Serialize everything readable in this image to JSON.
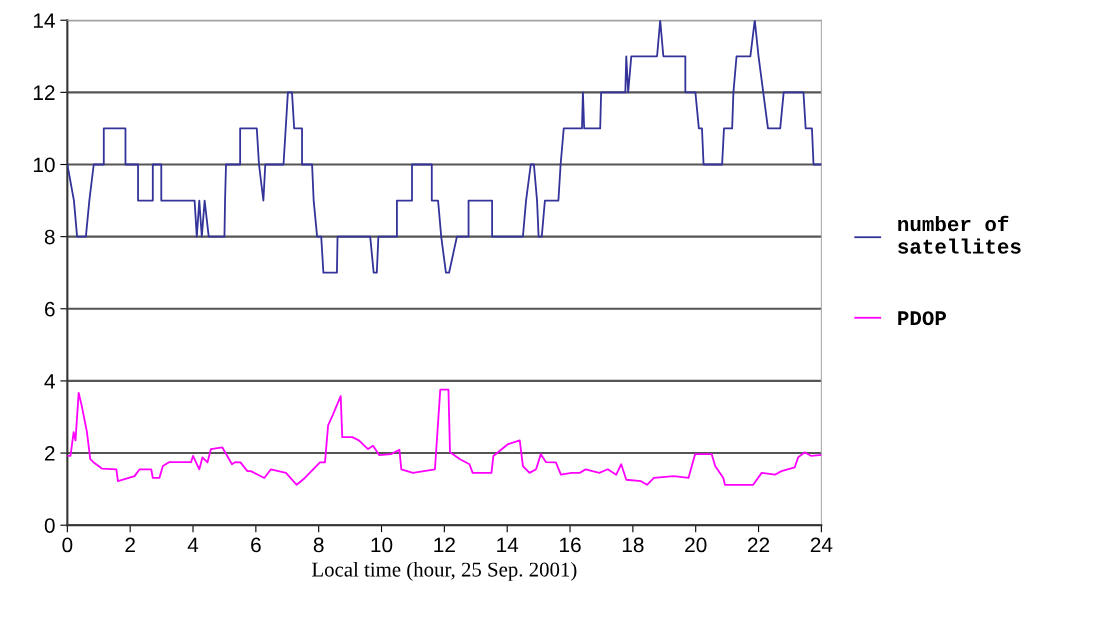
{
  "chart_data": {
    "type": "line",
    "xlabel": "Local time (hour, 25 Sep. 2001)",
    "xlim": [
      0,
      24
    ],
    "xticks": [
      0,
      2,
      4,
      6,
      8,
      10,
      12,
      14,
      16,
      18,
      20,
      22,
      24
    ],
    "ylim": [
      0,
      14
    ],
    "yticks": [
      0,
      2,
      4,
      6,
      8,
      10,
      12,
      14
    ],
    "grid": "y",
    "legend": "right",
    "marker": "none",
    "line_style": "solid",
    "series": [
      {
        "name": "number of\nsatellites",
        "color": "#33339a",
        "x": [
          0,
          0.21,
          0.31,
          0.59,
          0.7,
          0.84,
          1.16,
          1.16,
          1.85,
          1.85,
          2.25,
          2.25,
          2.72,
          2.72,
          2.99,
          2.99,
          4.05,
          4.12,
          4.2,
          4.28,
          4.37,
          4.5,
          5.0,
          5.02,
          5.05,
          5.5,
          5.5,
          6.03,
          6.1,
          6.24,
          6.3,
          6.88,
          6.95,
          7.02,
          7.15,
          7.22,
          7.47,
          7.47,
          7.79,
          7.84,
          7.95,
          8.08,
          8.15,
          8.58,
          8.6,
          9.64,
          9.75,
          9.85,
          9.9,
          10.49,
          10.49,
          10.97,
          10.97,
          11.6,
          11.6,
          11.8,
          11.9,
          12.05,
          12.15,
          12.4,
          12.45,
          12.77,
          12.77,
          13.52,
          13.52,
          14.5,
          14.6,
          14.75,
          14.85,
          14.95,
          15.0,
          15.1,
          15.2,
          15.63,
          15.7,
          15.8,
          16.38,
          16.41,
          16.45,
          16.96,
          16.99,
          17.76,
          17.79,
          17.85,
          17.95,
          18.77,
          18.87,
          18.97,
          19.67,
          19.67,
          19.99,
          20.1,
          20.2,
          20.25,
          20.84,
          20.9,
          21.16,
          21.2,
          21.3,
          21.74,
          21.88,
          22.0,
          22.15,
          22.3,
          22.69,
          22.8,
          23.43,
          23.5,
          23.7,
          23.75,
          24.0
        ],
        "values": [
          10,
          9,
          8,
          8,
          9,
          10,
          10,
          11,
          11,
          10,
          10,
          9,
          9,
          10,
          10,
          9,
          9,
          8,
          9,
          8,
          9,
          8,
          8,
          9,
          10,
          10,
          11,
          11,
          10,
          9,
          10,
          10,
          11,
          12,
          12,
          11,
          11,
          10,
          10,
          9,
          8,
          8,
          7,
          7,
          8,
          8,
          7,
          7,
          8,
          8,
          9,
          9,
          10,
          10,
          9,
          9,
          8,
          7,
          7,
          8,
          8,
          8,
          9,
          9,
          8,
          8,
          9,
          10,
          10,
          9,
          8,
          8,
          9,
          9,
          10,
          11,
          11,
          12,
          11,
          11,
          12,
          12,
          13,
          12,
          13,
          13,
          14,
          13,
          13,
          12,
          12,
          11,
          11,
          10,
          10,
          11,
          11,
          12,
          13,
          13,
          14,
          13,
          12,
          11,
          11,
          12,
          12,
          11,
          11,
          10,
          10
        ]
      },
      {
        "name": "PDOP",
        "color": "#ff00ff",
        "x": [
          0,
          0.1,
          0.2,
          0.26,
          0.36,
          0.46,
          0.62,
          0.73,
          0.84,
          1.1,
          1.56,
          1.61,
          2.14,
          2.3,
          2.67,
          2.72,
          2.93,
          3.04,
          3.25,
          3.94,
          4.0,
          4.2,
          4.3,
          4.46,
          4.57,
          4.93,
          5.24,
          5.35,
          5.51,
          5.73,
          5.84,
          6.27,
          6.48,
          6.96,
          7.3,
          7.56,
          8.04,
          8.2,
          8.3,
          8.45,
          8.7,
          8.75,
          9.07,
          9.28,
          9.57,
          9.73,
          9.93,
          10.3,
          10.57,
          10.63,
          11.0,
          11.7,
          11.87,
          12.13,
          12.18,
          12.5,
          12.8,
          12.9,
          13.5,
          13.56,
          14.03,
          14.4,
          14.5,
          14.71,
          14.92,
          15.07,
          15.23,
          15.55,
          15.71,
          16.05,
          16.31,
          16.5,
          16.93,
          17.2,
          17.47,
          17.63,
          17.79,
          18.26,
          18.45,
          18.67,
          19.3,
          19.77,
          19.98,
          20.51,
          20.62,
          20.88,
          20.93,
          21.83,
          22.1,
          22.52,
          22.73,
          23.15,
          23.26,
          23.47,
          23.68,
          24.0
        ],
        "values": [
          1.92,
          1.92,
          2.58,
          2.35,
          3.67,
          3.3,
          2.6,
          1.83,
          1.74,
          1.57,
          1.55,
          1.22,
          1.36,
          1.55,
          1.55,
          1.31,
          1.31,
          1.64,
          1.75,
          1.75,
          1.92,
          1.55,
          1.88,
          1.74,
          2.11,
          2.16,
          1.69,
          1.75,
          1.74,
          1.5,
          1.5,
          1.31,
          1.55,
          1.45,
          1.12,
          1.31,
          1.74,
          1.74,
          2.77,
          3.06,
          3.58,
          2.44,
          2.44,
          2.35,
          2.11,
          2.2,
          1.94,
          1.97,
          2.09,
          1.55,
          1.45,
          1.55,
          3.76,
          3.76,
          2.02,
          1.83,
          1.69,
          1.45,
          1.45,
          1.92,
          2.25,
          2.35,
          1.64,
          1.45,
          1.55,
          1.97,
          1.75,
          1.74,
          1.4,
          1.45,
          1.45,
          1.55,
          1.45,
          1.55,
          1.4,
          1.69,
          1.26,
          1.22,
          1.12,
          1.31,
          1.36,
          1.31,
          1.97,
          1.97,
          1.64,
          1.31,
          1.12,
          1.12,
          1.45,
          1.4,
          1.5,
          1.6,
          1.88,
          2.02,
          1.92,
          1.95
        ]
      }
    ]
  }
}
